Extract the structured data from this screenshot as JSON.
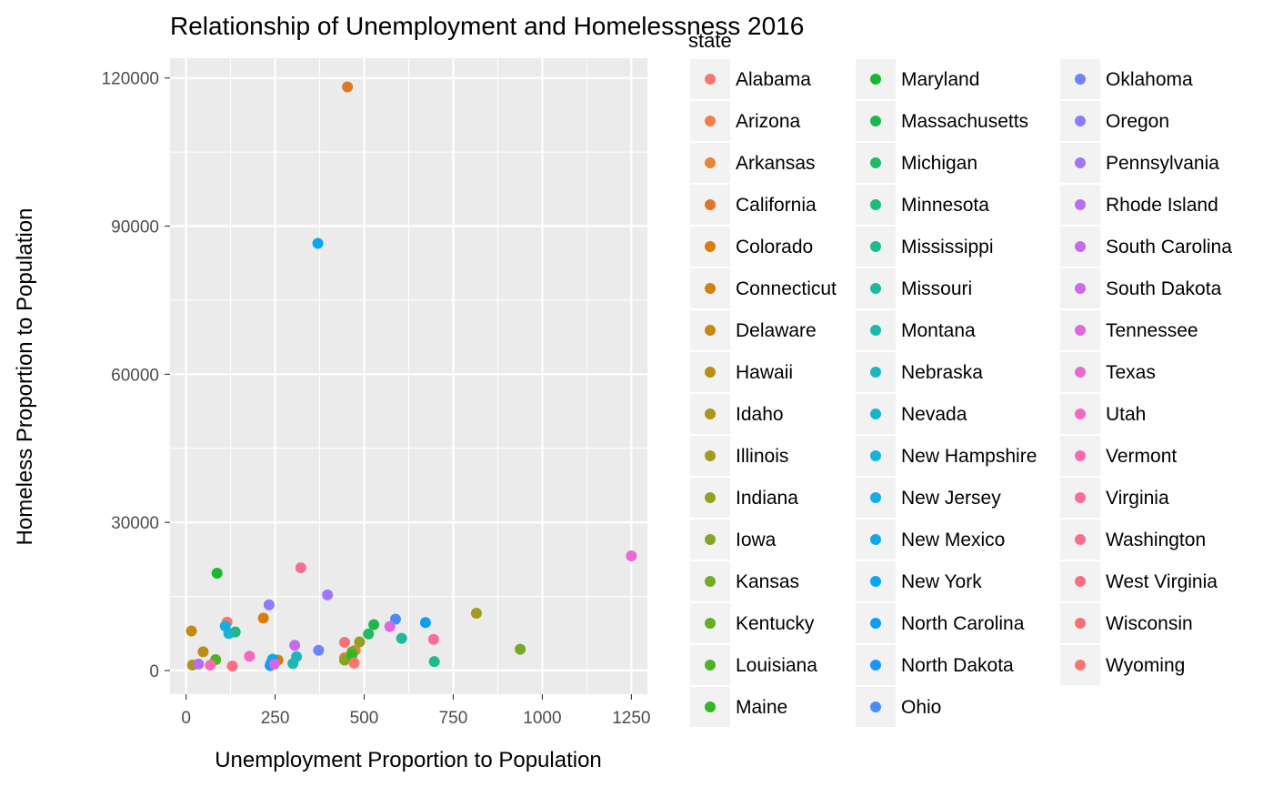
{
  "chart_data": {
    "type": "scatter",
    "title": "Relationship of Unemployment and Homelessness 2016",
    "xlabel": "Unemployment Proportion to Population",
    "ylabel": "Homeless Proportion to Population",
    "xlim": [
      -45,
      1295
    ],
    "ylim": [
      -4800,
      124000
    ],
    "xticks": [
      0,
      250,
      500,
      750,
      1000,
      1250
    ],
    "yticks": [
      0,
      30000,
      60000,
      90000,
      120000
    ],
    "grid": true,
    "legend": {
      "title": "state",
      "placement": "right",
      "columns": 3
    },
    "series": [
      {
        "name": "Alabama",
        "color": "#F8766D",
        "x": [
          115
        ],
        "y": [
          9800
        ]
      },
      {
        "name": "Arizona",
        "color": "#F17F4A",
        "x": [
          475
        ],
        "y": [
          4100
        ]
      },
      {
        "name": "Arkansas",
        "color": "#E8853A",
        "x": [
          445
        ],
        "y": [
          2600
        ]
      },
      {
        "name": "California",
        "color": "#E0762A",
        "x": [
          453
        ],
        "y": [
          118200
        ]
      },
      {
        "name": "Colorado",
        "color": "#D97C0C",
        "x": [
          217
        ],
        "y": [
          10600
        ]
      },
      {
        "name": "Connecticut",
        "color": "#D0820C",
        "x": [
          258
        ],
        "y": [
          2100
        ]
      },
      {
        "name": "Delaware",
        "color": "#C68810",
        "x": [
          15
        ],
        "y": [
          8000
        ]
      },
      {
        "name": "Hawaii",
        "color": "#BB8E15",
        "x": [
          48
        ],
        "y": [
          3800
        ]
      },
      {
        "name": "Idaho",
        "color": "#AF941A",
        "x": [
          18
        ],
        "y": [
          1100
        ]
      },
      {
        "name": "Illinois",
        "color": "#A39A1F",
        "x": [
          815
        ],
        "y": [
          11600
        ]
      },
      {
        "name": "Indiana",
        "color": "#95A022",
        "x": [
          487
        ],
        "y": [
          5800
        ]
      },
      {
        "name": "Iowa",
        "color": "#86A526",
        "x": [
          445
        ],
        "y": [
          2100
        ]
      },
      {
        "name": "Kansas",
        "color": "#75AA26",
        "x": [
          938
        ],
        "y": [
          4300
        ]
      },
      {
        "name": "Kentucky",
        "color": "#63AF25",
        "x": [
          466
        ],
        "y": [
          3800
        ]
      },
      {
        "name": "Louisiana",
        "color": "#4EB323",
        "x": [
          83
        ],
        "y": [
          2200
        ]
      },
      {
        "name": "Maine",
        "color": "#33B721",
        "x": [
          465
        ],
        "y": [
          3100
        ]
      },
      {
        "name": "Maryland",
        "color": "#18B92F",
        "x": [
          87
        ],
        "y": [
          19700
        ]
      },
      {
        "name": "Massachusetts",
        "color": "#1EB74E",
        "x": [
          527
        ],
        "y": [
          9300
        ]
      },
      {
        "name": "Michigan",
        "color": "#20B964",
        "x": [
          512
        ],
        "y": [
          7400
        ]
      },
      {
        "name": "Minnesota",
        "color": "#1FB97A",
        "x": [
          138
        ],
        "y": [
          7800
        ]
      },
      {
        "name": "Mississippi",
        "color": "#1DBA8D",
        "x": [
          697
        ],
        "y": [
          1800
        ]
      },
      {
        "name": "Missouri",
        "color": "#1DB99E",
        "x": [
          605
        ],
        "y": [
          6500
        ]
      },
      {
        "name": "Montana",
        "color": "#1EB8AE",
        "x": [
          300
        ],
        "y": [
          1400
        ]
      },
      {
        "name": "Nebraska",
        "color": "#1CB7BE",
        "x": [
          310
        ],
        "y": [
          2800
        ]
      },
      {
        "name": "Nevada",
        "color": "#1AB4CC",
        "x": [
          120
        ],
        "y": [
          7500
        ]
      },
      {
        "name": "New Hampshire",
        "color": "#17B2D9",
        "x": [
          238
        ],
        "y": [
          1500
        ]
      },
      {
        "name": "New Jersey",
        "color": "#14AEE4",
        "x": [
          110
        ],
        "y": [
          9000
        ]
      },
      {
        "name": "New Mexico",
        "color": "#0EA9ED",
        "x": [
          243
        ],
        "y": [
          2300
        ]
      },
      {
        "name": "New York",
        "color": "#08A5F4",
        "x": [
          370
        ],
        "y": [
          86500
        ]
      },
      {
        "name": "North Carolina",
        "color": "#0C9DF8",
        "x": [
          672
        ],
        "y": [
          9700
        ]
      },
      {
        "name": "North Dakota",
        "color": "#1A95FB",
        "x": [
          236
        ],
        "y": [
          1000
        ]
      },
      {
        "name": "Ohio",
        "color": "#4A8CFC",
        "x": [
          588
        ],
        "y": [
          10400
        ]
      },
      {
        "name": "Oklahoma",
        "color": "#6F84FC",
        "x": [
          372
        ],
        "y": [
          4100
        ]
      },
      {
        "name": "Oregon",
        "color": "#8B7DFB",
        "x": [
          233
        ],
        "y": [
          13300
        ]
      },
      {
        "name": "Pennsylvania",
        "color": "#A176F9",
        "x": [
          397
        ],
        "y": [
          15300
        ]
      },
      {
        "name": "Rhode Island",
        "color": "#B46FF5",
        "x": [
          35
        ],
        "y": [
          1300
        ]
      },
      {
        "name": "South Carolina",
        "color": "#C56BEF",
        "x": [
          305
        ],
        "y": [
          5100
        ]
      },
      {
        "name": "South Dakota",
        "color": "#D567E9",
        "x": [
          248
        ],
        "y": [
          1300
        ]
      },
      {
        "name": "Tennessee",
        "color": "#E167DF",
        "x": [
          572
        ],
        "y": [
          8900
        ]
      },
      {
        "name": "Texas",
        "color": "#EC68D2",
        "x": [
          1250
        ],
        "y": [
          23200
        ]
      },
      {
        "name": "Utah",
        "color": "#F468C3",
        "x": [
          178
        ],
        "y": [
          2900
        ]
      },
      {
        "name": "Vermont",
        "color": "#F96AB2",
        "x": [
          68
        ],
        "y": [
          1100
        ]
      },
      {
        "name": "Virginia",
        "color": "#FA6BA1",
        "x": [
          695
        ],
        "y": [
          6300
        ]
      },
      {
        "name": "Washington",
        "color": "#F96D90",
        "x": [
          322
        ],
        "y": [
          20800
        ]
      },
      {
        "name": "West Virginia",
        "color": "#F76F82",
        "x": [
          130
        ],
        "y": [
          900
        ]
      },
      {
        "name": "Wisconsin",
        "color": "#F57274",
        "x": [
          445
        ],
        "y": [
          5700
        ]
      },
      {
        "name": "Wyoming",
        "color": "#F8766D",
        "x": [
          472
        ],
        "y": [
          1500
        ]
      }
    ]
  }
}
